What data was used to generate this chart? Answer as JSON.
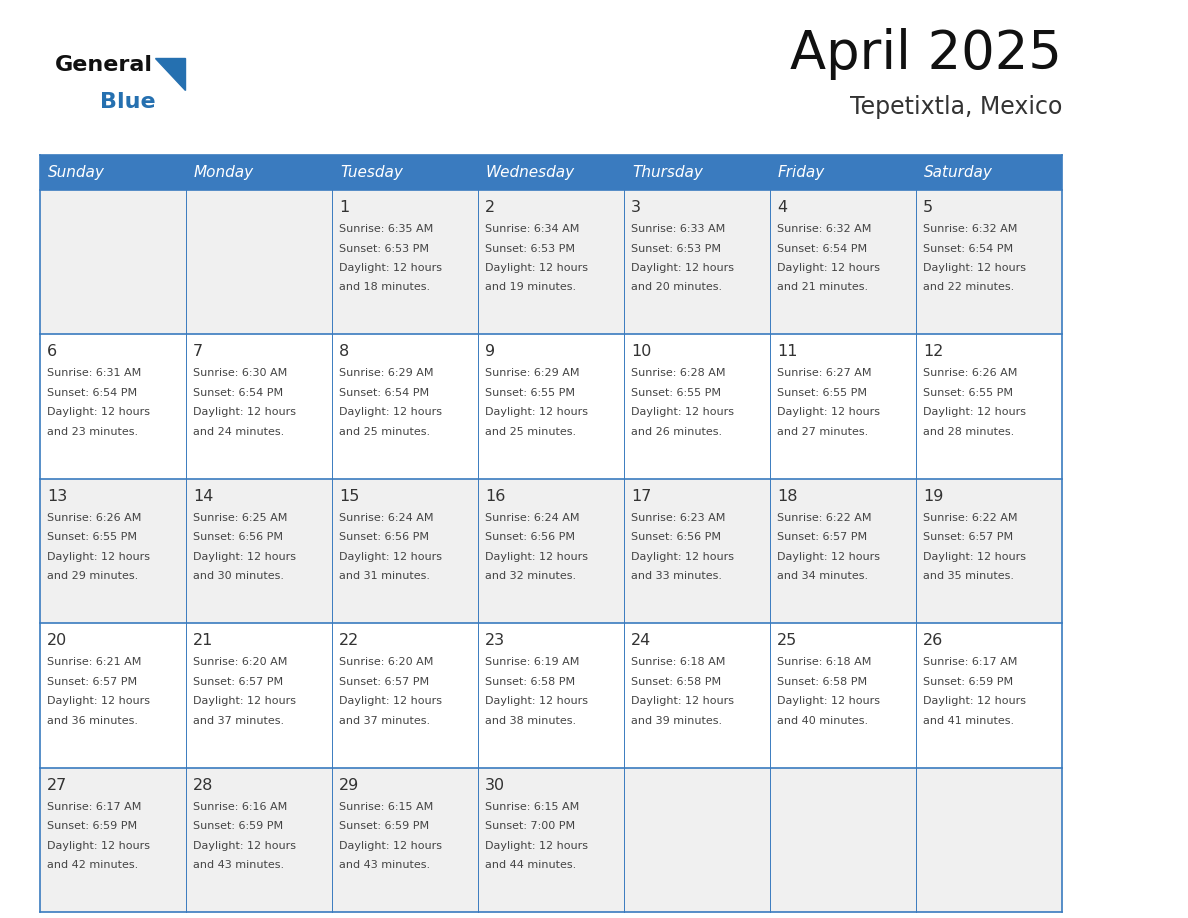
{
  "title": "April 2025",
  "subtitle": "Tepetixtla, Mexico",
  "days_of_week": [
    "Sunday",
    "Monday",
    "Tuesday",
    "Wednesday",
    "Thursday",
    "Friday",
    "Saturday"
  ],
  "header_bg": "#3a7bbf",
  "header_text": "#ffffff",
  "row_bg_odd": "#f0f0f0",
  "row_bg_even": "#ffffff",
  "cell_border": "#3a7bbf",
  "day_num_color": "#333333",
  "text_color": "#444444",
  "logo_general_color": "#111111",
  "logo_blue_color": "#2570b0",
  "calendar_data": [
    {
      "day": 1,
      "col": 2,
      "row": 0,
      "sunrise": "6:35 AM",
      "sunset": "6:53 PM",
      "daylight_hours": 12,
      "daylight_minutes": 18
    },
    {
      "day": 2,
      "col": 3,
      "row": 0,
      "sunrise": "6:34 AM",
      "sunset": "6:53 PM",
      "daylight_hours": 12,
      "daylight_minutes": 19
    },
    {
      "day": 3,
      "col": 4,
      "row": 0,
      "sunrise": "6:33 AM",
      "sunset": "6:53 PM",
      "daylight_hours": 12,
      "daylight_minutes": 20
    },
    {
      "day": 4,
      "col": 5,
      "row": 0,
      "sunrise": "6:32 AM",
      "sunset": "6:54 PM",
      "daylight_hours": 12,
      "daylight_minutes": 21
    },
    {
      "day": 5,
      "col": 6,
      "row": 0,
      "sunrise": "6:32 AM",
      "sunset": "6:54 PM",
      "daylight_hours": 12,
      "daylight_minutes": 22
    },
    {
      "day": 6,
      "col": 0,
      "row": 1,
      "sunrise": "6:31 AM",
      "sunset": "6:54 PM",
      "daylight_hours": 12,
      "daylight_minutes": 23
    },
    {
      "day": 7,
      "col": 1,
      "row": 1,
      "sunrise": "6:30 AM",
      "sunset": "6:54 PM",
      "daylight_hours": 12,
      "daylight_minutes": 24
    },
    {
      "day": 8,
      "col": 2,
      "row": 1,
      "sunrise": "6:29 AM",
      "sunset": "6:54 PM",
      "daylight_hours": 12,
      "daylight_minutes": 25
    },
    {
      "day": 9,
      "col": 3,
      "row": 1,
      "sunrise": "6:29 AM",
      "sunset": "6:55 PM",
      "daylight_hours": 12,
      "daylight_minutes": 25
    },
    {
      "day": 10,
      "col": 4,
      "row": 1,
      "sunrise": "6:28 AM",
      "sunset": "6:55 PM",
      "daylight_hours": 12,
      "daylight_minutes": 26
    },
    {
      "day": 11,
      "col": 5,
      "row": 1,
      "sunrise": "6:27 AM",
      "sunset": "6:55 PM",
      "daylight_hours": 12,
      "daylight_minutes": 27
    },
    {
      "day": 12,
      "col": 6,
      "row": 1,
      "sunrise": "6:26 AM",
      "sunset": "6:55 PM",
      "daylight_hours": 12,
      "daylight_minutes": 28
    },
    {
      "day": 13,
      "col": 0,
      "row": 2,
      "sunrise": "6:26 AM",
      "sunset": "6:55 PM",
      "daylight_hours": 12,
      "daylight_minutes": 29
    },
    {
      "day": 14,
      "col": 1,
      "row": 2,
      "sunrise": "6:25 AM",
      "sunset": "6:56 PM",
      "daylight_hours": 12,
      "daylight_minutes": 30
    },
    {
      "day": 15,
      "col": 2,
      "row": 2,
      "sunrise": "6:24 AM",
      "sunset": "6:56 PM",
      "daylight_hours": 12,
      "daylight_minutes": 31
    },
    {
      "day": 16,
      "col": 3,
      "row": 2,
      "sunrise": "6:24 AM",
      "sunset": "6:56 PM",
      "daylight_hours": 12,
      "daylight_minutes": 32
    },
    {
      "day": 17,
      "col": 4,
      "row": 2,
      "sunrise": "6:23 AM",
      "sunset": "6:56 PM",
      "daylight_hours": 12,
      "daylight_minutes": 33
    },
    {
      "day": 18,
      "col": 5,
      "row": 2,
      "sunrise": "6:22 AM",
      "sunset": "6:57 PM",
      "daylight_hours": 12,
      "daylight_minutes": 34
    },
    {
      "day": 19,
      "col": 6,
      "row": 2,
      "sunrise": "6:22 AM",
      "sunset": "6:57 PM",
      "daylight_hours": 12,
      "daylight_minutes": 35
    },
    {
      "day": 20,
      "col": 0,
      "row": 3,
      "sunrise": "6:21 AM",
      "sunset": "6:57 PM",
      "daylight_hours": 12,
      "daylight_minutes": 36
    },
    {
      "day": 21,
      "col": 1,
      "row": 3,
      "sunrise": "6:20 AM",
      "sunset": "6:57 PM",
      "daylight_hours": 12,
      "daylight_minutes": 37
    },
    {
      "day": 22,
      "col": 2,
      "row": 3,
      "sunrise": "6:20 AM",
      "sunset": "6:57 PM",
      "daylight_hours": 12,
      "daylight_minutes": 37
    },
    {
      "day": 23,
      "col": 3,
      "row": 3,
      "sunrise": "6:19 AM",
      "sunset": "6:58 PM",
      "daylight_hours": 12,
      "daylight_minutes": 38
    },
    {
      "day": 24,
      "col": 4,
      "row": 3,
      "sunrise": "6:18 AM",
      "sunset": "6:58 PM",
      "daylight_hours": 12,
      "daylight_minutes": 39
    },
    {
      "day": 25,
      "col": 5,
      "row": 3,
      "sunrise": "6:18 AM",
      "sunset": "6:58 PM",
      "daylight_hours": 12,
      "daylight_minutes": 40
    },
    {
      "day": 26,
      "col": 6,
      "row": 3,
      "sunrise": "6:17 AM",
      "sunset": "6:59 PM",
      "daylight_hours": 12,
      "daylight_minutes": 41
    },
    {
      "day": 27,
      "col": 0,
      "row": 4,
      "sunrise": "6:17 AM",
      "sunset": "6:59 PM",
      "daylight_hours": 12,
      "daylight_minutes": 42
    },
    {
      "day": 28,
      "col": 1,
      "row": 4,
      "sunrise": "6:16 AM",
      "sunset": "6:59 PM",
      "daylight_hours": 12,
      "daylight_minutes": 43
    },
    {
      "day": 29,
      "col": 2,
      "row": 4,
      "sunrise": "6:15 AM",
      "sunset": "6:59 PM",
      "daylight_hours": 12,
      "daylight_minutes": 43
    },
    {
      "day": 30,
      "col": 3,
      "row": 4,
      "sunrise": "6:15 AM",
      "sunset": "7:00 PM",
      "daylight_hours": 12,
      "daylight_minutes": 44
    }
  ],
  "fig_width": 11.88,
  "fig_height": 9.18,
  "dpi": 100
}
